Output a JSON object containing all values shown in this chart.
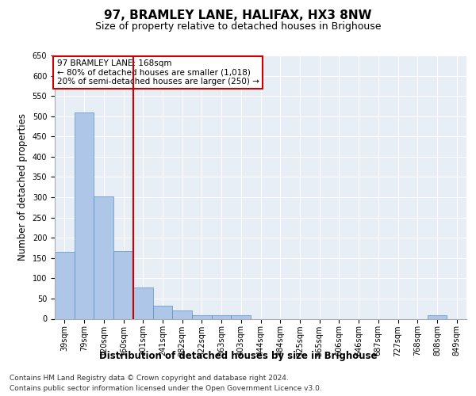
{
  "title": "97, BRAMLEY LANE, HALIFAX, HX3 8NW",
  "subtitle": "Size of property relative to detached houses in Brighouse",
  "xlabel": "Distribution of detached houses by size in Brighouse",
  "ylabel": "Number of detached properties",
  "bar_labels": [
    "39sqm",
    "79sqm",
    "120sqm",
    "160sqm",
    "201sqm",
    "241sqm",
    "282sqm",
    "322sqm",
    "363sqm",
    "403sqm",
    "444sqm",
    "484sqm",
    "525sqm",
    "565sqm",
    "606sqm",
    "646sqm",
    "687sqm",
    "727sqm",
    "768sqm",
    "808sqm",
    "849sqm"
  ],
  "bar_values": [
    165,
    510,
    303,
    168,
    78,
    32,
    20,
    8,
    8,
    8,
    0,
    0,
    0,
    0,
    0,
    0,
    0,
    0,
    0,
    8,
    0
  ],
  "bar_color": "#aec6e8",
  "bar_edgecolor": "#5a8fc2",
  "background_color": "#e8eef6",
  "grid_color": "#ffffff",
  "vline_x": 3.5,
  "vline_color": "#cc0000",
  "annotation_text": "97 BRAMLEY LANE: 168sqm\n← 80% of detached houses are smaller (1,018)\n20% of semi-detached houses are larger (250) →",
  "annotation_box_color": "#ffffff",
  "annotation_box_edgecolor": "#cc0000",
  "ylim": [
    0,
    650
  ],
  "yticks": [
    0,
    50,
    100,
    150,
    200,
    250,
    300,
    350,
    400,
    450,
    500,
    550,
    600,
    650
  ],
  "footer_line1": "Contains HM Land Registry data © Crown copyright and database right 2024.",
  "footer_line2": "Contains public sector information licensed under the Open Government Licence v3.0.",
  "title_fontsize": 11,
  "subtitle_fontsize": 9,
  "label_fontsize": 8.5,
  "tick_fontsize": 7,
  "footer_fontsize": 6.5
}
